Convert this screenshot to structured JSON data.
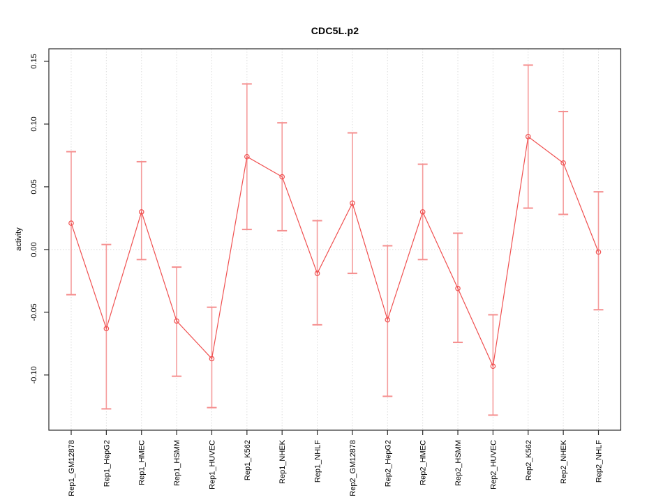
{
  "chart_data": {
    "type": "line",
    "title": "CDC5L.p2",
    "xlabel": "",
    "ylabel": "activity",
    "categories": [
      "Rep1_GM12878",
      "Rep1_HepG2",
      "Rep1_HMEC",
      "Rep1_HSMM",
      "Rep1_HUVEC",
      "Rep1_K562",
      "Rep1_NHEK",
      "Rep1_NHLF",
      "Rep2_GM12878",
      "Rep2_HepG2",
      "Rep2_HMEC",
      "Rep2_HSMM",
      "Rep2_HUVEC",
      "Rep2_K562",
      "Rep2_NHEK",
      "Rep2_NHLF"
    ],
    "series": [
      {
        "name": "activity",
        "values": [
          0.021,
          -0.063,
          0.03,
          -0.057,
          -0.087,
          0.074,
          0.058,
          -0.019,
          0.037,
          -0.056,
          0.03,
          -0.031,
          -0.093,
          0.09,
          0.069,
          -0.002
        ],
        "err_low": [
          -0.036,
          -0.127,
          -0.008,
          -0.101,
          -0.126,
          0.016,
          0.015,
          -0.06,
          -0.019,
          -0.117,
          -0.008,
          -0.074,
          -0.132,
          0.033,
          0.028,
          -0.048
        ],
        "err_high": [
          0.078,
          0.004,
          0.07,
          -0.014,
          -0.046,
          0.132,
          0.101,
          0.023,
          0.093,
          0.003,
          0.068,
          0.013,
          -0.052,
          0.147,
          0.11,
          0.046
        ]
      }
    ],
    "ylim": [
      -0.144,
      0.16
    ],
    "yticks": [
      0.15,
      0.1,
      0.05,
      0.0,
      -0.05,
      -0.1
    ],
    "ytick_labels": [
      "0.15",
      "0.10",
      "0.05",
      "0.00",
      "-0.05",
      "-0.10"
    ],
    "grid": {
      "vertical": "dotted line at each category",
      "horizontal": "dotted line at y=0 only"
    },
    "legend": "none",
    "marker": "open-circle",
    "colors": {
      "series": "#f05050",
      "error_bar": "#f59c9c",
      "error_cap": "#f58f8f",
      "gridline": "#dcdcdc",
      "box": "#2b2b2b",
      "background": "#ffffff"
    }
  }
}
